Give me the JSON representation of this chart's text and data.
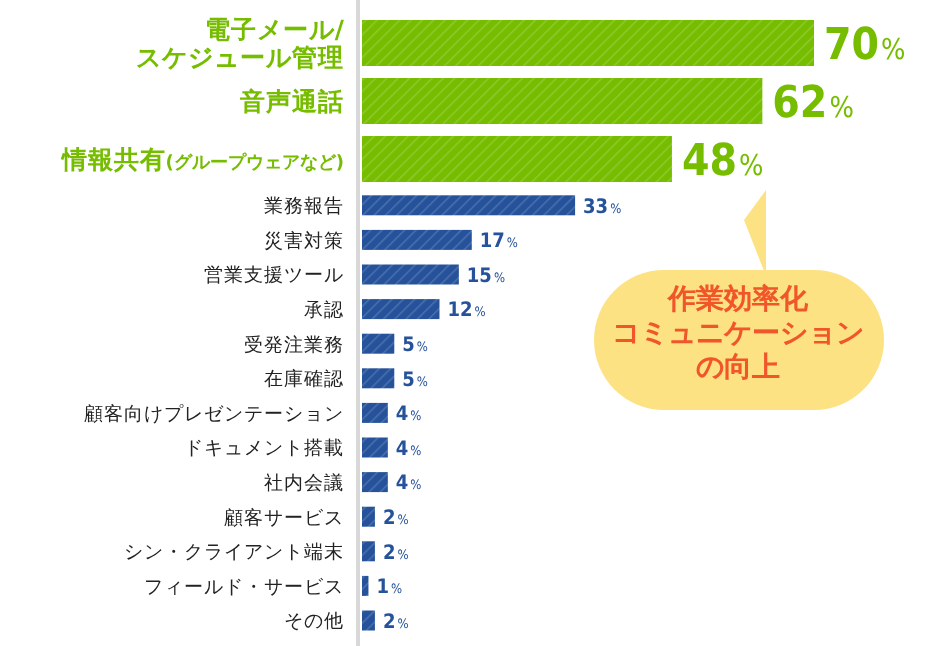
{
  "chart_data": {
    "type": "bar",
    "orientation": "horizontal",
    "categories": [
      "電子メール/\nスケジュール管理",
      "音声通話",
      "情報共有(グループウェアなど)",
      "業務報告",
      "災害対策",
      "営業支援ツール",
      "承認",
      "受発注業務",
      "在庫確認",
      "顧客向けプレゼンテーション",
      "ドキュメント搭載",
      "社内会議",
      "顧客サービス",
      "シン・クライアント端末",
      "フィールド・サービス",
      "その他"
    ],
    "values": [
      70,
      62,
      48,
      33,
      17,
      15,
      12,
      5,
      5,
      4,
      4,
      4,
      2,
      2,
      1,
      2
    ],
    "value_labels": [
      "70%",
      "62%",
      "48%",
      "33%",
      "17%",
      "15%",
      "12%",
      "5%",
      "5%",
      "4%",
      "4%",
      "4%",
      "2%",
      "2%",
      "1%",
      "2%"
    ],
    "colors": [
      "#76bd00",
      "#76bd00",
      "#76bd00",
      "#25529a",
      "#25529a",
      "#25529a",
      "#25529a",
      "#25529a",
      "#25529a",
      "#25529a",
      "#25529a",
      "#25529a",
      "#25529a",
      "#25529a",
      "#25529a",
      "#25529a"
    ],
    "annotations": [
      "作業効率化",
      "コミュニケーション",
      "の向上"
    ]
  }
}
